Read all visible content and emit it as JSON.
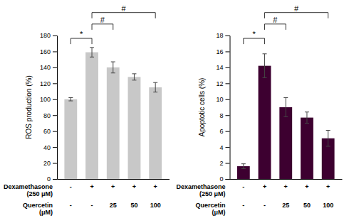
{
  "chart_data": [
    {
      "type": "bar",
      "ylabel": "ROS production (%)",
      "categories": [
        [
          "-",
          "-"
        ],
        [
          "+",
          "-"
        ],
        [
          "+",
          "25"
        ],
        [
          "+",
          "50"
        ],
        [
          "+",
          "100"
        ]
      ],
      "row_labels": [
        "Dexamethasone\n(250 μM)",
        "Quercetin\n(μM)"
      ],
      "values": [
        100,
        159,
        140,
        128,
        115
      ],
      "errors": [
        2,
        6,
        7,
        4,
        6
      ],
      "color": "#c8c8c8",
      "ylim": [
        0,
        180
      ],
      "yticks": [
        0,
        20,
        40,
        60,
        80,
        100,
        120,
        140,
        160,
        180
      ],
      "grid": false,
      "annotations": [
        {
          "text": "*",
          "from": 0,
          "to": 1
        },
        {
          "text": "#",
          "from": 1,
          "to": 2
        },
        {
          "text": "#",
          "from": 1,
          "to": 4
        }
      ]
    },
    {
      "type": "bar",
      "ylabel": "Apoptotic cells (%)",
      "categories": [
        [
          "-",
          "-"
        ],
        [
          "+",
          "-"
        ],
        [
          "+",
          "25"
        ],
        [
          "+",
          "50"
        ],
        [
          "+",
          "100"
        ]
      ],
      "row_labels": [
        "Dexamethasone\n(250 μM)",
        "Quercetin\n(μM)"
      ],
      "values": [
        1.6,
        14.2,
        9.0,
        7.7,
        5.1
      ],
      "errors": [
        0.3,
        1.5,
        1.2,
        0.7,
        1.0
      ],
      "color": "#3d0030",
      "ylim": [
        0,
        18
      ],
      "yticks": [
        0,
        2,
        4,
        6,
        8,
        10,
        12,
        14,
        16,
        18
      ],
      "grid": false,
      "annotations": [
        {
          "text": "*",
          "from": 0,
          "to": 1
        },
        {
          "text": "#",
          "from": 1,
          "to": 2
        },
        {
          "text": "#",
          "from": 1,
          "to": 4
        }
      ]
    }
  ]
}
